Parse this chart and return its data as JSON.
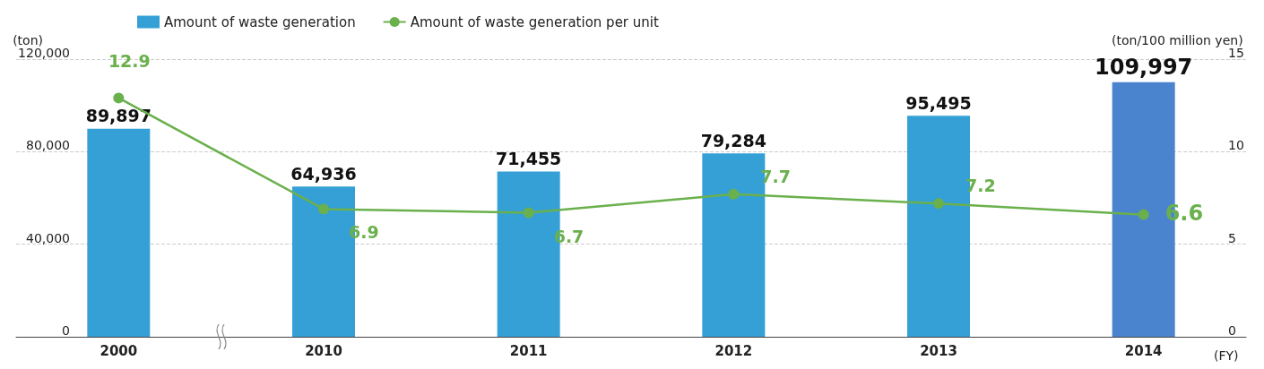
{
  "chart_data": {
    "type": "bar",
    "categories": [
      "2000",
      "2010",
      "2011",
      "2012",
      "2013",
      "2014"
    ],
    "xlabel": "(FY)",
    "ylabel": "(ton)",
    "y2label": "(ton/100 million yen)",
    "series": [
      {
        "name": "Amount of waste generation",
        "color": "#35a0d6",
        "colors": [
          "#35a0d6",
          "#35a0d6",
          "#35a0d6",
          "#35a0d6",
          "#35a0d6",
          "#4a84cf"
        ],
        "values": [
          89897,
          64936,
          71455,
          79284,
          95495,
          109997
        ],
        "value_labels": [
          "89,897",
          "64,936",
          "71,455",
          "79,284",
          "95,495",
          "109,997"
        ]
      },
      {
        "name": "Amount of waste generation per unit",
        "type": "line",
        "axis": "y2",
        "color": "#6ab04c",
        "values": [
          12.9,
          6.9,
          6.7,
          7.7,
          7.2,
          6.6
        ],
        "value_labels": [
          "12.9",
          "6.9",
          "6.7",
          "7.7",
          "7.2",
          "6.6"
        ]
      }
    ],
    "ylim": [
      0,
      120000
    ],
    "yticks": [
      {
        "value": 0,
        "label": "0"
      },
      {
        "value": 40000,
        "label": "40,000"
      },
      {
        "value": 80000,
        "label": "80,000"
      },
      {
        "value": 120000,
        "label": "120,000"
      }
    ],
    "y2lim": [
      0,
      15
    ],
    "y2ticks": [
      0,
      5,
      10,
      15
    ],
    "grid": "y",
    "legend": "top left",
    "marker": "circle"
  }
}
